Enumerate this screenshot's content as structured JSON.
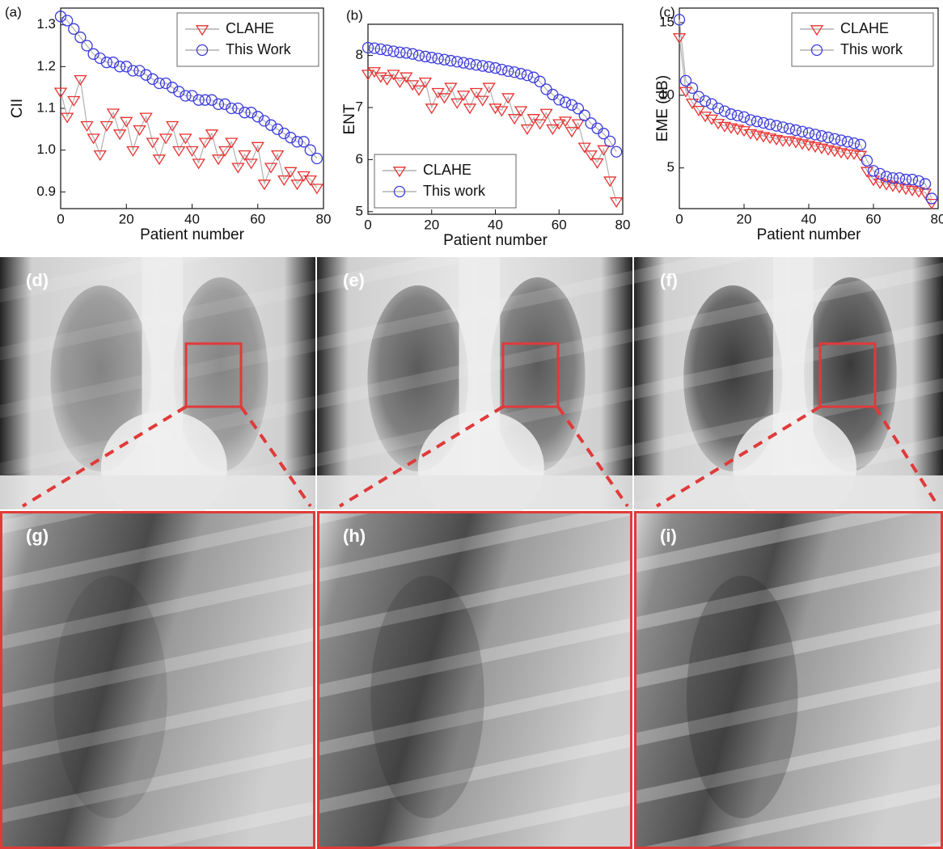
{
  "chart_data": [
    {
      "type": "scatter",
      "panel_label": "(a)",
      "xlabel": "Patient number",
      "ylabel": "CII",
      "x": [
        0,
        2,
        4,
        6,
        8,
        10,
        12,
        14,
        16,
        18,
        20,
        22,
        24,
        26,
        28,
        30,
        32,
        34,
        36,
        38,
        40,
        42,
        44,
        46,
        48,
        50,
        52,
        54,
        56,
        58,
        60,
        62,
        64,
        66,
        68,
        70,
        72,
        74,
        76,
        78
      ],
      "series": [
        {
          "name": "CLAHE",
          "color": "#e8312f",
          "marker": "triangle-down",
          "values": [
            1.14,
            1.08,
            1.12,
            1.17,
            1.06,
            1.03,
            0.99,
            1.06,
            1.09,
            1.04,
            1.07,
            1.0,
            1.05,
            1.08,
            1.02,
            0.98,
            1.03,
            1.06,
            1.0,
            1.03,
            1.0,
            0.97,
            1.02,
            1.04,
            0.98,
            1.0,
            1.02,
            0.96,
            0.99,
            0.97,
            1.01,
            0.92,
            0.96,
            0.99,
            0.93,
            0.95,
            0.92,
            0.94,
            0.93,
            0.91
          ]
        },
        {
          "name": "This Work",
          "color": "#3b3bdc",
          "marker": "circle",
          "values": [
            1.32,
            1.31,
            1.29,
            1.27,
            1.25,
            1.23,
            1.22,
            1.21,
            1.21,
            1.2,
            1.2,
            1.19,
            1.19,
            1.18,
            1.17,
            1.16,
            1.16,
            1.15,
            1.14,
            1.13,
            1.13,
            1.12,
            1.12,
            1.12,
            1.11,
            1.11,
            1.1,
            1.1,
            1.09,
            1.09,
            1.08,
            1.07,
            1.06,
            1.05,
            1.04,
            1.03,
            1.02,
            1.02,
            1.0,
            0.98
          ]
        }
      ],
      "xlim": [
        0,
        80
      ],
      "xticks": [
        0,
        20,
        40,
        60,
        80
      ],
      "ylim": [
        0.86,
        1.34
      ],
      "yticks": [
        0.9,
        {
          "value": 1,
          "label": "1.0"
        },
        1.1,
        1.2,
        1.3
      ],
      "legend": "upper right",
      "line_color": "#b0b0b0"
    },
    {
      "type": "scatter",
      "panel_label": "(b)",
      "xlabel": "Patient number",
      "ylabel": "ENT",
      "x": [
        0,
        2,
        4,
        6,
        8,
        10,
        12,
        14,
        16,
        18,
        20,
        22,
        24,
        26,
        28,
        30,
        32,
        34,
        36,
        38,
        40,
        42,
        44,
        46,
        48,
        50,
        52,
        54,
        56,
        58,
        60,
        62,
        64,
        66,
        68,
        70,
        72,
        74,
        76,
        78
      ],
      "series": [
        {
          "name": "CLAHE",
          "color": "#e8312f",
          "marker": "triangle-down",
          "values": [
            7.65,
            7.7,
            7.6,
            7.55,
            7.65,
            7.5,
            7.6,
            7.45,
            7.35,
            7.5,
            7.0,
            7.3,
            7.2,
            7.4,
            7.1,
            7.25,
            7.0,
            7.3,
            7.15,
            7.4,
            7.0,
            6.95,
            7.2,
            6.8,
            6.95,
            6.6,
            6.8,
            6.7,
            6.9,
            6.6,
            6.7,
            6.75,
            6.55,
            6.7,
            6.25,
            6.1,
            5.95,
            6.2,
            5.6,
            5.2
          ]
        },
        {
          "name": "This work",
          "color": "#3b3bdc",
          "marker": "circle",
          "values": [
            8.15,
            8.14,
            8.12,
            8.1,
            8.08,
            8.06,
            8.05,
            8.03,
            8.0,
            7.98,
            7.96,
            7.94,
            7.92,
            7.9,
            7.88,
            7.86,
            7.84,
            7.82,
            7.8,
            7.78,
            7.76,
            7.73,
            7.7,
            7.68,
            7.65,
            7.62,
            7.58,
            7.5,
            7.35,
            7.25,
            7.15,
            7.1,
            7.05,
            6.98,
            6.85,
            6.7,
            6.6,
            6.5,
            6.35,
            6.15
          ]
        }
      ],
      "xlim": [
        0,
        80
      ],
      "xticks": [
        0,
        20,
        40,
        60,
        80
      ],
      "ylim": [
        4.95,
        8.6
      ],
      "yticks": [
        5,
        6,
        7,
        8
      ],
      "legend": "lower left",
      "line_color": "#b0b0b0"
    },
    {
      "type": "scatter",
      "panel_label": "(c)",
      "xlabel": "Patient number",
      "ylabel": "EME (dB)",
      "x": [
        0,
        2,
        4,
        6,
        8,
        10,
        12,
        14,
        16,
        18,
        20,
        22,
        24,
        26,
        28,
        30,
        32,
        34,
        36,
        38,
        40,
        42,
        44,
        46,
        48,
        50,
        52,
        54,
        56,
        58,
        60,
        62,
        64,
        66,
        68,
        70,
        72,
        74,
        76,
        78
      ],
      "series": [
        {
          "name": "CLAHE",
          "color": "#e8312f",
          "marker": "triangle-down",
          "values": [
            14.0,
            10.3,
            9.5,
            9.0,
            8.6,
            8.4,
            8.1,
            7.9,
            7.8,
            7.7,
            7.6,
            7.4,
            7.3,
            7.2,
            7.1,
            7.0,
            6.9,
            6.9,
            6.8,
            6.7,
            6.6,
            6.5,
            6.4,
            6.3,
            6.2,
            6.1,
            6.0,
            6.0,
            5.9,
            4.8,
            4.2,
            4.0,
            3.9,
            3.8,
            3.7,
            3.6,
            3.5,
            3.4,
            3.3,
            2.6
          ]
        },
        {
          "name": "This work",
          "color": "#3b3bdc",
          "marker": "circle",
          "values": [
            15.2,
            11.0,
            10.5,
            9.9,
            9.6,
            9.4,
            9.1,
            8.9,
            8.7,
            8.6,
            8.5,
            8.3,
            8.2,
            8.1,
            8.0,
            7.9,
            7.8,
            7.7,
            7.6,
            7.5,
            7.4,
            7.3,
            7.2,
            7.1,
            7.0,
            6.9,
            6.8,
            6.7,
            6.6,
            5.5,
            4.8,
            4.6,
            4.4,
            4.3,
            4.3,
            4.2,
            4.2,
            4.1,
            3.9,
            2.9
          ]
        }
      ],
      "xlim": [
        0,
        80
      ],
      "xticks": [
        0,
        20,
        40,
        60,
        80
      ],
      "ylim": [
        2.2,
        16
      ],
      "yticks": [
        5,
        10,
        15
      ],
      "legend": "upper right",
      "line_color": "#b0b0b0"
    }
  ],
  "panels": [
    {
      "label": "(d)"
    },
    {
      "label": "(e)"
    },
    {
      "label": "(f)"
    },
    {
      "label": "(g)"
    },
    {
      "label": "(h)"
    },
    {
      "label": "(i)"
    }
  ]
}
